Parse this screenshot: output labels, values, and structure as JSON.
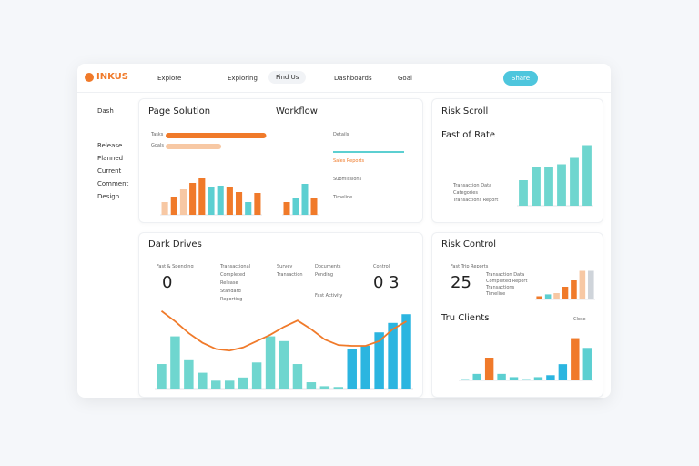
{
  "nav": {
    "logo": "INKUS",
    "items": [
      "Explore",
      "Exploring",
      "Find Us",
      "Dashboards",
      "Goal"
    ],
    "button": "Share"
  },
  "sidebar": [
    "Dash",
    "Release",
    "Planned",
    "Current",
    "Comment",
    "Design"
  ],
  "page_solution": {
    "title": "Page Solution",
    "progress": [
      {
        "label": "Tasks",
        "value": 85
      },
      {
        "label": "Goals",
        "value": 47
      }
    ],
    "range": [
      0,
      100
    ],
    "chart": {
      "type": "bar",
      "ylim": [
        0,
        45
      ],
      "values": [
        14,
        20,
        28,
        35,
        40,
        30,
        32,
        30,
        25,
        14,
        24
      ],
      "colors": [
        "#f7c8a4",
        "#f07a2a",
        "#f7c8a4",
        "#f07a2a",
        "#f07a2a",
        "#5ccfd1",
        "#5ccfd1",
        "#f07a2a",
        "#f07a2a",
        "#5ccfd1",
        "#f07a2a"
      ]
    }
  },
  "workflow": {
    "title": "Workflow",
    "items": [
      "Details",
      "Sales Reports",
      "Submissions",
      "Timeline"
    ],
    "chart": {
      "type": "bar",
      "ylim": [
        0,
        40
      ],
      "values": [
        14,
        18,
        34,
        18
      ],
      "colors": [
        "#f07a2a",
        "#5ccfd1",
        "#5ccfd1",
        "#f07a2a"
      ]
    }
  },
  "risk_scroll": {
    "title": "Risk Scroll",
    "subtitle": "Fast of Rate",
    "legend": [
      "Transaction Data",
      "Categories",
      "Transactions Report"
    ],
    "chart": {
      "type": "bar",
      "ylim": [
        0,
        100
      ],
      "values": [
        40,
        60,
        60,
        65,
        75,
        95
      ],
      "colors": [
        "#6fd6cf",
        "#6fd6cf",
        "#6fd6cf",
        "#6fd6cf",
        "#6fd6cf",
        "#6fd6cf"
      ]
    }
  },
  "dark_drives": {
    "title": "Dark Drives",
    "stat_label": "Fast & Spending",
    "stat": "0",
    "stat2_label": "Control",
    "stat2": "0 3",
    "list": [
      "Transactional",
      "Completed",
      "Release",
      "Standard",
      "Reporting",
      "Survey",
      "Transaction",
      "Documents",
      "Pending",
      "Fast Activity"
    ],
    "chart": {
      "type": "bar-line",
      "ylim": [
        0,
        100
      ],
      "values": [
        31,
        66,
        37,
        20,
        10,
        10,
        14,
        33,
        66,
        60,
        31,
        8,
        3,
        2,
        50,
        54,
        71,
        83,
        94
      ],
      "colors": [
        "#6fd6cf",
        "#6fd6cf",
        "#6fd6cf",
        "#6fd6cf",
        "#6fd6cf",
        "#6fd6cf",
        "#6fd6cf",
        "#6fd6cf",
        "#6fd6cf",
        "#6fd6cf",
        "#6fd6cf",
        "#6fd6cf",
        "#6fd6cf",
        "#6fd6cf",
        "#2bb5e0",
        "#2bb5e0",
        "#2bb5e0",
        "#2bb5e0",
        "#2bb5e0"
      ],
      "line": [
        98,
        85,
        70,
        58,
        50,
        48,
        52,
        60,
        68,
        78,
        86,
        75,
        62,
        55,
        54,
        54,
        60,
        75,
        85
      ],
      "line_color": "#f07a2a"
    }
  },
  "risk_control": {
    "title": "Risk Control",
    "stat_label": "Fast Trip Reports",
    "stat": "25",
    "list": [
      "Transaction Data",
      "Completed Report",
      "Transactions",
      "Timeline"
    ],
    "chart": {
      "type": "bar",
      "ylim": [
        0,
        50
      ],
      "values": [
        5,
        8,
        10,
        20,
        30,
        45,
        45
      ],
      "colors": [
        "#f07a2a",
        "#5ccfd1",
        "#f7c8a4",
        "#f07a2a",
        "#f07a2a",
        "#f7c8a4",
        "#cfd4da"
      ]
    }
  },
  "tru_clients": {
    "title": "Tru Clients",
    "link": "Close",
    "chart": {
      "type": "bar",
      "ylim": [
        0,
        70
      ],
      "values": [
        2,
        10,
        35,
        10,
        5,
        2,
        5,
        8,
        25,
        65,
        50
      ],
      "colors": [
        "#5ccfd1",
        "#5ccfd1",
        "#f07a2a",
        "#5ccfd1",
        "#5ccfd1",
        "#5ccfd1",
        "#5ccfd1",
        "#2bb5e0",
        "#2bb5e0",
        "#f07a2a",
        "#5ccfd1"
      ]
    }
  }
}
